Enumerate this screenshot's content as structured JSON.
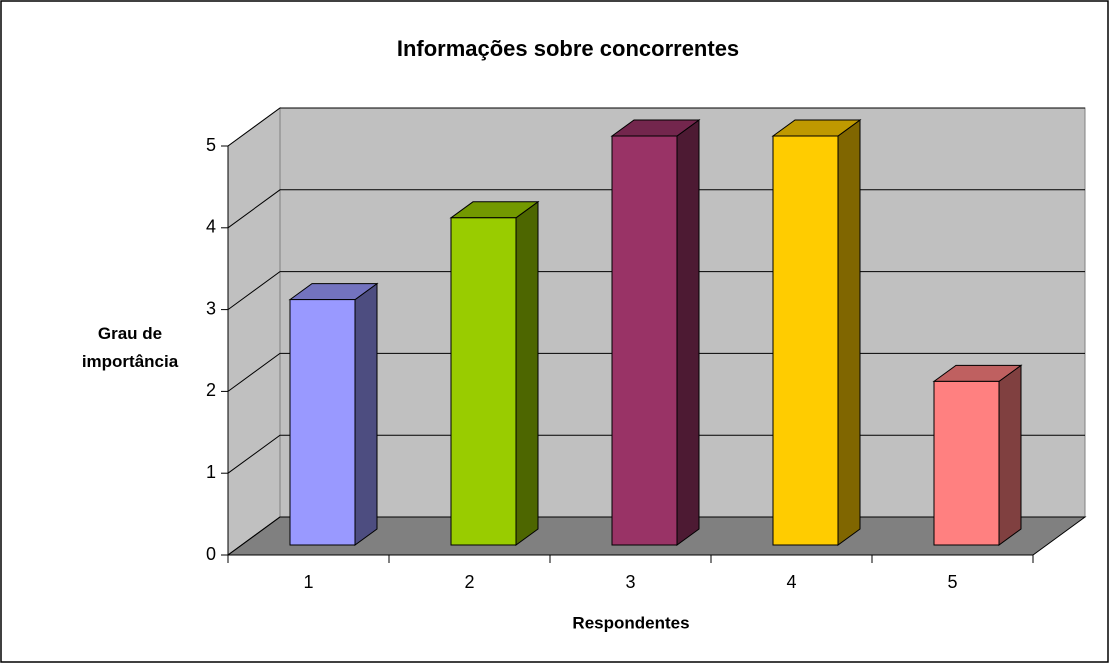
{
  "chart_data": {
    "type": "bar",
    "title": "Informações sobre concorrentes",
    "x_label": "Respondentes",
    "y_label": "Grau de importância",
    "categories": [
      "1",
      "2",
      "3",
      "4",
      "5"
    ],
    "values": [
      3,
      4,
      5,
      5,
      2
    ],
    "colors": [
      "#9999ff",
      "#99cc00",
      "#993366",
      "#ffcc00",
      "#ff8080"
    ],
    "ylim": [
      0,
      5
    ],
    "yticks": [
      0,
      1,
      2,
      3,
      4,
      5
    ],
    "grid": true
  }
}
